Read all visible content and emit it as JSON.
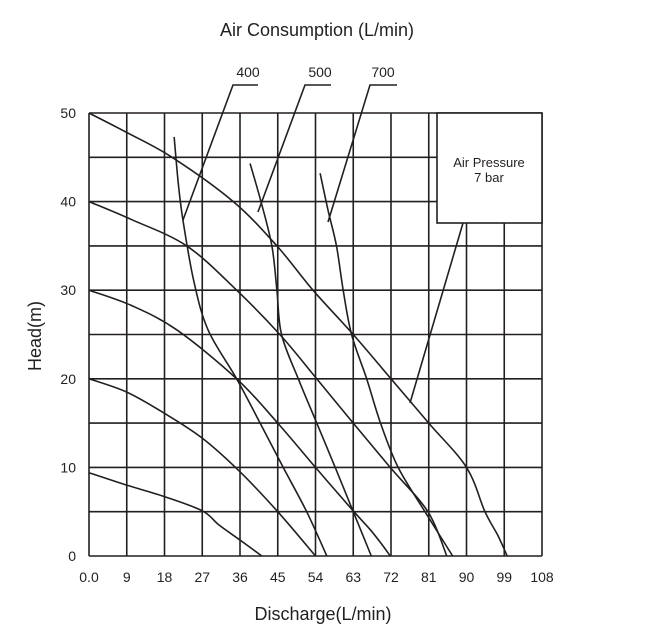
{
  "chart_data": {
    "type": "line",
    "title": "Air Consumption (L/min)",
    "xlabel": "Discharge(L/min)",
    "ylabel": "Head(m)",
    "xlim": [
      0,
      108
    ],
    "ylim": [
      0,
      50
    ],
    "grid": true,
    "x_ticks": [
      "0.0",
      "9",
      "18",
      "27",
      "36",
      "45",
      "54",
      "63",
      "72",
      "81",
      "90",
      "99",
      "108"
    ],
    "y_ticks": [
      "0",
      "10",
      "20",
      "30",
      "40",
      "50"
    ],
    "x_grid_step": 9,
    "y_grid_step": 5,
    "annotation_box": {
      "line1": "Air Pressure",
      "line2": "7 bar"
    },
    "head_curves": [
      {
        "name": "head-50",
        "points": [
          [
            0,
            50
          ],
          [
            9,
            47.8
          ],
          [
            19.8,
            45
          ],
          [
            34.4,
            40
          ],
          [
            44.8,
            35
          ],
          [
            53.4,
            30
          ],
          [
            63,
            25
          ],
          [
            72,
            20
          ],
          [
            81,
            15
          ],
          [
            90,
            10
          ],
          [
            94.4,
            5
          ],
          [
            97.5,
            2.3
          ],
          [
            99.7,
            0
          ]
        ]
      },
      {
        "name": "head-40",
        "points": [
          [
            0,
            40
          ],
          [
            10,
            38
          ],
          [
            23.3,
            35
          ],
          [
            35.2,
            30
          ],
          [
            45.5,
            25
          ],
          [
            54.3,
            20
          ],
          [
            63,
            15
          ],
          [
            71.8,
            10
          ],
          [
            80.8,
            5
          ],
          [
            85.3,
            0
          ]
        ]
      },
      {
        "name": "head-30",
        "points": [
          [
            0,
            30
          ],
          [
            10,
            28.3
          ],
          [
            21,
            25.5
          ],
          [
            35.2,
            20
          ],
          [
            45,
            15
          ],
          [
            54,
            10
          ],
          [
            62.6,
            5.3
          ],
          [
            67,
            3
          ],
          [
            70,
            1.2
          ],
          [
            71.8,
            0
          ]
        ]
      },
      {
        "name": "head-20",
        "points": [
          [
            0,
            20
          ],
          [
            9,
            18.5
          ],
          [
            18,
            16.1
          ],
          [
            27,
            13.3
          ],
          [
            36,
            9.5
          ],
          [
            45,
            5
          ],
          [
            54,
            0
          ]
        ]
      },
      {
        "name": "head-10",
        "points": [
          [
            0,
            9.4
          ],
          [
            9,
            8
          ],
          [
            18,
            6.7
          ],
          [
            27,
            5.1
          ],
          [
            31,
            3.5
          ],
          [
            36,
            1.8
          ],
          [
            41.2,
            0
          ]
        ]
      }
    ],
    "air_consumption_curves": [
      {
        "label": "400",
        "points": [
          [
            20.3,
            47.3
          ],
          [
            21.3,
            42
          ],
          [
            22.4,
            37.9
          ],
          [
            25,
            31
          ],
          [
            28.4,
            25.5
          ],
          [
            35.2,
            20
          ],
          [
            40.8,
            15
          ],
          [
            46.3,
            10
          ],
          [
            51.9,
            5
          ],
          [
            56.7,
            0
          ]
        ]
      },
      {
        "label": "500",
        "points": [
          [
            38.4,
            44.3
          ],
          [
            41,
            40
          ],
          [
            43.6,
            35
          ],
          [
            44.8,
            30
          ],
          [
            45.9,
            25
          ],
          [
            49.9,
            20
          ],
          [
            54.3,
            15
          ],
          [
            58.7,
            10
          ],
          [
            63,
            5
          ],
          [
            67.3,
            0
          ]
        ]
      },
      {
        "label": "700",
        "points": [
          [
            55.1,
            43.2
          ],
          [
            57,
            39
          ],
          [
            59,
            35
          ],
          [
            60.6,
            30
          ],
          [
            62.6,
            25
          ],
          [
            66.2,
            20
          ],
          [
            69.5,
            15
          ],
          [
            73.7,
            10
          ],
          [
            80.1,
            5
          ],
          [
            86.7,
            0
          ]
        ]
      }
    ]
  }
}
